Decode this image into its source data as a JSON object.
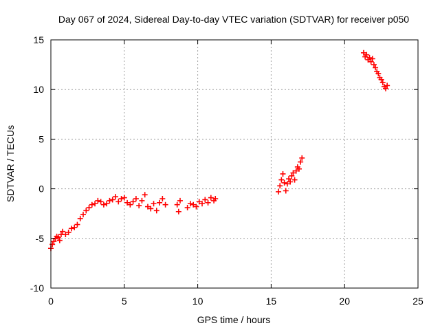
{
  "chart_data": {
    "type": "scatter",
    "title": "Day 067 of 2024, Sidereal Day-to-day VTEC variation (SDTVAR) for receiver p050",
    "xlabel": "GPS time / hours",
    "ylabel": "SDTVAR / TECUs",
    "xlim": [
      0,
      25
    ],
    "ylim": [
      -10,
      15
    ],
    "xticks": [
      0,
      5,
      10,
      15,
      20,
      25
    ],
    "yticks": [
      -10,
      -5,
      0,
      5,
      10,
      15
    ],
    "grid": true,
    "marker": "+",
    "color": "#ff0000",
    "series": [
      {
        "name": "segment-1",
        "x": [
          0.0,
          0.1,
          0.2,
          0.3,
          0.4,
          0.5,
          0.6,
          0.7,
          0.8,
          1.0,
          1.2,
          1.4,
          1.6,
          1.8,
          2.0,
          2.2,
          2.4,
          2.6,
          2.8,
          3.0,
          3.2,
          3.4,
          3.6,
          3.8,
          4.0,
          4.2,
          4.4,
          4.6,
          4.8,
          5.0,
          5.2,
          5.4,
          5.6,
          5.8,
          6.0,
          6.2,
          6.4,
          6.6,
          6.8,
          7.0,
          7.2,
          7.4,
          7.6,
          7.8
        ],
        "y": [
          -6.0,
          -5.6,
          -5.3,
          -5.0,
          -4.8,
          -4.9,
          -5.2,
          -4.6,
          -4.3,
          -4.6,
          -4.4,
          -4.0,
          -3.9,
          -3.6,
          -3.0,
          -2.6,
          -2.2,
          -1.9,
          -1.6,
          -1.5,
          -1.2,
          -1.3,
          -1.6,
          -1.5,
          -1.2,
          -1.1,
          -0.8,
          -1.3,
          -1.0,
          -0.9,
          -1.4,
          -1.6,
          -1.3,
          -1.0,
          -1.7,
          -1.2,
          -0.6,
          -1.8,
          -2.0,
          -1.5,
          -2.2,
          -1.4,
          -1.0,
          -1.6
        ]
      },
      {
        "name": "segment-2",
        "x": [
          8.6,
          8.7,
          8.8,
          9.3,
          9.5,
          9.7,
          9.9,
          10.1,
          10.3,
          10.5,
          10.7,
          10.9,
          11.1,
          11.2
        ],
        "y": [
          -1.6,
          -2.3,
          -1.2,
          -1.9,
          -1.5,
          -1.6,
          -1.8,
          -1.3,
          -1.5,
          -1.1,
          -1.4,
          -0.9,
          -1.2,
          -1.0
        ]
      },
      {
        "name": "segment-3",
        "x": [
          15.5,
          15.6,
          15.7,
          15.8,
          15.9,
          16.0,
          16.1,
          16.2,
          16.3,
          16.4,
          16.5,
          16.6,
          16.7,
          16.8,
          16.9,
          17.0,
          17.1
        ],
        "y": [
          -0.3,
          0.3,
          0.9,
          1.5,
          0.6,
          -0.2,
          0.5,
          1.0,
          0.7,
          1.3,
          1.6,
          0.9,
          1.8,
          2.2,
          2.0,
          2.7,
          3.1
        ]
      },
      {
        "name": "segment-4",
        "x": [
          21.3,
          21.4,
          21.5,
          21.6,
          21.7,
          21.8,
          21.9,
          22.0,
          22.1,
          22.2,
          22.3,
          22.4,
          22.5,
          22.6,
          22.7,
          22.8,
          22.9
        ],
        "y": [
          13.7,
          13.3,
          13.5,
          13.0,
          13.2,
          12.8,
          13.1,
          12.5,
          12.2,
          11.8,
          11.6,
          11.2,
          11.0,
          10.7,
          10.3,
          10.1,
          10.4
        ]
      }
    ]
  }
}
